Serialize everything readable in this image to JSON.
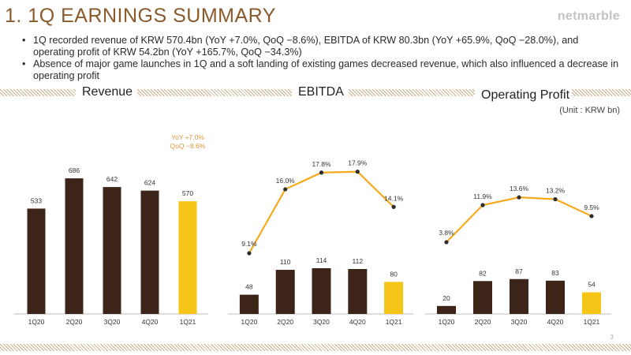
{
  "header": {
    "title": "1. 1Q EARNINGS SUMMARY",
    "brand": "netmarble"
  },
  "bullets": [
    "1Q recorded revenue of KRW 570.4bn (YoY +7.0%, QoQ −8.6%), EBITDA of KRW 80.3bn (YoY +65.9%, QoQ −28.0%), and operating profit of KRW 54.2bn (YoY +165.7%, QoQ −34.3%)",
    "Absence of major game launches in 1Q and a soft landing of existing games decreased revenue, which also influenced a decrease in operating profit"
  ],
  "unit_note": "(Unit : KRW bn)",
  "page_number": "3",
  "colors": {
    "bar": "#3d2418",
    "highlight": "#f5c518",
    "line": "#f5a91c",
    "title": "#8a5a2b",
    "annotation": "#e0963a"
  },
  "chart_data": [
    {
      "type": "bar",
      "title": "Revenue",
      "categories": [
        "1Q20",
        "2Q20",
        "3Q20",
        "4Q20",
        "1Q21"
      ],
      "values": [
        533,
        686,
        642,
        624,
        570
      ],
      "value_labels": [
        "533",
        "686",
        "642",
        "624",
        "570"
      ],
      "highlight_index": 4,
      "annotations": [
        "YoY +7.0%",
        "QoQ −8.6%"
      ]
    },
    {
      "type": "bar",
      "title": "EBITDA",
      "categories": [
        "1Q20",
        "2Q20",
        "3Q20",
        "4Q20",
        "1Q21"
      ],
      "values": [
        48,
        110,
        114,
        112,
        80
      ],
      "value_labels": [
        "48",
        "110",
        "114",
        "112",
        "80"
      ],
      "highlight_index": 4,
      "margin_line": {
        "values": [
          9.1,
          16.0,
          17.8,
          17.9,
          14.1
        ],
        "labels": [
          "9.1%",
          "16.0%",
          "17.8%",
          "17.9%",
          "14.1%"
        ]
      }
    },
    {
      "type": "bar",
      "title": "Operating Profit",
      "categories": [
        "1Q20",
        "2Q20",
        "3Q20",
        "4Q20",
        "1Q21"
      ],
      "values": [
        20,
        82,
        87,
        83,
        54
      ],
      "value_labels": [
        "20",
        "82",
        "87",
        "83",
        "54"
      ],
      "highlight_index": 4,
      "margin_line": {
        "values": [
          3.8,
          11.9,
          13.6,
          13.2,
          9.5
        ],
        "labels": [
          "3.8%",
          "11.9%",
          "13.6%",
          "13.2%",
          "9.5%"
        ]
      }
    }
  ]
}
